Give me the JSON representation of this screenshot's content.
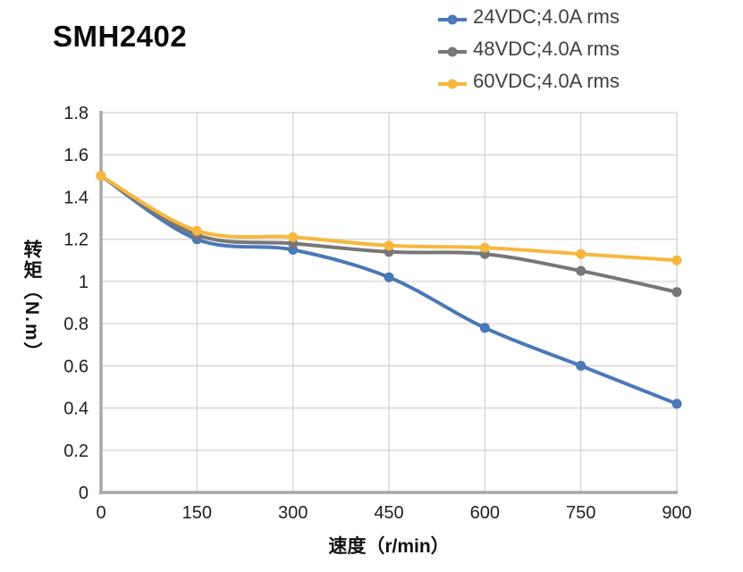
{
  "title": "SMH2402",
  "legend": {
    "position": "top-right",
    "items": [
      {
        "label": "24VDC;4.0A rms",
        "color": "#4A78B8"
      },
      {
        "label": "48VDC;4.0A rms",
        "color": "#777777"
      },
      {
        "label": "60VDC;4.0A rms",
        "color": "#F7B73E"
      }
    ]
  },
  "chart_data": {
    "type": "line",
    "title": "SMH2402",
    "xlabel": "速度（r/min）",
    "ylabel": "转矩（N.m）",
    "x": [
      0,
      150,
      300,
      450,
      600,
      750,
      900
    ],
    "series": [
      {
        "name": "24VDC;4.0A rms",
        "color": "#4A78B8",
        "values": [
          1.5,
          1.2,
          1.15,
          1.02,
          0.78,
          0.6,
          0.42
        ]
      },
      {
        "name": "48VDC;4.0A rms",
        "color": "#777777",
        "values": [
          1.5,
          1.22,
          1.18,
          1.14,
          1.13,
          1.05,
          0.95
        ]
      },
      {
        "name": "60VDC;4.0A rms",
        "color": "#F7B73E",
        "values": [
          1.5,
          1.24,
          1.21,
          1.17,
          1.16,
          1.13,
          1.1
        ]
      }
    ],
    "xticks": [
      0,
      150,
      300,
      450,
      600,
      750,
      900
    ],
    "xtick_labels": [
      "0",
      "150",
      "300",
      "450",
      "600",
      "750",
      "900"
    ],
    "yticks": [
      0,
      0.2,
      0.4,
      0.6,
      0.8,
      1,
      1.2,
      1.4,
      1.6,
      1.8
    ],
    "ytick_labels": [
      "0",
      "0.2",
      "0.4",
      "0.6",
      "0.8",
      "1",
      "1.2",
      "1.4",
      "1.6",
      "1.8"
    ],
    "xlim": [
      0,
      900
    ],
    "ylim": [
      0,
      1.8
    ],
    "grid": true,
    "line_style": "smooth",
    "marker": "circle",
    "legend_position": "top-right",
    "colors": {
      "gridline": "#D9D9D9",
      "axis": "#A8A8A8",
      "tick_text": "#1F1F1F"
    }
  }
}
